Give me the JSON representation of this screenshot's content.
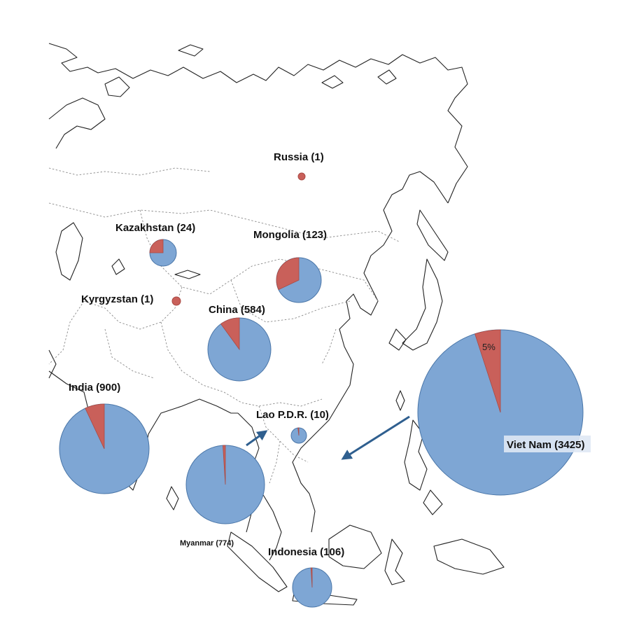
{
  "colors": {
    "pie_main": "#7ea6d4",
    "pie_main_stroke": "#4a76a8",
    "pie_highlight": "#c9605a",
    "arrow": "#2f5f8f",
    "coast": "#222222",
    "border": "#8a8a8a"
  },
  "chart_data": {
    "type": "pie",
    "countries": [
      {
        "id": "russia",
        "label": "Russia (1)",
        "count": 1,
        "highlight_fraction": 1.0
      },
      {
        "id": "kazakhstan",
        "label": "Kazakhstan (24)",
        "count": 24,
        "highlight_fraction": 0.25
      },
      {
        "id": "mongolia",
        "label": "Mongolia (123)",
        "count": 123,
        "highlight_fraction": 0.32
      },
      {
        "id": "kyrgyzstan",
        "label": "Kyrgyzstan (1)",
        "count": 1,
        "highlight_fraction": 1.0
      },
      {
        "id": "china",
        "label": "China (584)",
        "count": 584,
        "highlight_fraction": 0.1
      },
      {
        "id": "india",
        "label": "India (900)",
        "count": 900,
        "highlight_fraction": 0.07
      },
      {
        "id": "lao",
        "label": "Lao P.D.R. (10)",
        "count": 10,
        "highlight_fraction": 0.02
      },
      {
        "id": "myanmar",
        "label": "Myanmar (774)",
        "count": 774,
        "highlight_fraction": 0.01
      },
      {
        "id": "vietnam",
        "label": "Viet Nam (3425)",
        "count": 3425,
        "highlight_fraction": 0.05,
        "slice_label": "5%"
      },
      {
        "id": "indonesia",
        "label": "Indonesia (106)",
        "count": 106,
        "highlight_fraction": 0.01
      }
    ]
  }
}
